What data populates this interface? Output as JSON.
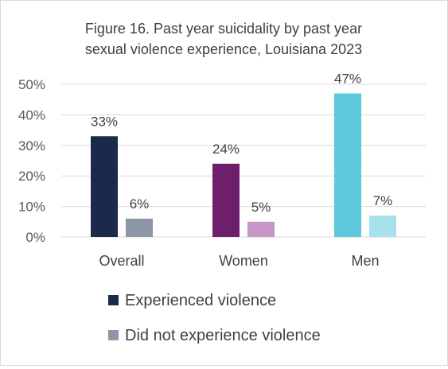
{
  "chart_data": {
    "type": "bar",
    "title_lines": [
      "Figure 16. Past year suicidality by past year",
      "sexual violence experience, Louisiana 2023"
    ],
    "categories": [
      "Overall",
      "Women",
      "Men"
    ],
    "ylim": [
      0,
      50
    ],
    "y_ticks": [
      0,
      10,
      20,
      30,
      40,
      50
    ],
    "y_tick_labels": [
      "0%",
      "10%",
      "20%",
      "30%",
      "40%",
      "50%"
    ],
    "grid": true,
    "legend_position": "bottom",
    "series": [
      {
        "name": "Experienced violence",
        "values": [
          33,
          24,
          47
        ],
        "labels": [
          "33%",
          "24%",
          "47%"
        ],
        "colors": [
          "#1b2a4a",
          "#6e1f6b",
          "#5bc8dc"
        ],
        "legend_color": "#1b2a4a"
      },
      {
        "name": "Did not experience violence",
        "values": [
          6,
          5,
          7
        ],
        "labels": [
          "6%",
          "5%",
          "7%"
        ],
        "colors": [
          "#8c96a6",
          "#c696c6",
          "#a8e1ec"
        ],
        "legend_color": "#8c96a6"
      }
    ],
    "colors": {
      "grid": "#d9d9d9",
      "text": "#404040",
      "axis_text": "#595959"
    }
  }
}
